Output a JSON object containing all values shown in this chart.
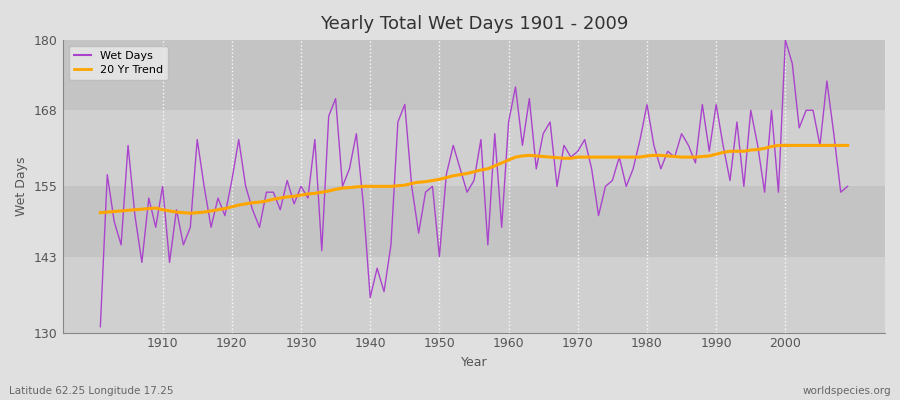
{
  "title": "Yearly Total Wet Days 1901 - 2009",
  "xlabel": "Year",
  "ylabel": "Wet Days",
  "subtitle_left": "Latitude 62.25 Longitude 17.25",
  "subtitle_right": "worldspecies.org",
  "ylim": [
    130,
    180
  ],
  "yticks": [
    130,
    143,
    155,
    168,
    180
  ],
  "xticks": [
    1910,
    1920,
    1930,
    1940,
    1950,
    1960,
    1970,
    1980,
    1990,
    2000
  ],
  "line_color": "#AA44CC",
  "trend_color": "#FFA500",
  "bg_color": "#E0E0E0",
  "plot_bg_color": "#D8D8D8",
  "band_color_light": "#DCDCDC",
  "band_color_dark": "#C8C8C8",
  "grid_color": "#FFFFFF",
  "years": [
    1901,
    1902,
    1903,
    1904,
    1905,
    1906,
    1907,
    1908,
    1909,
    1910,
    1911,
    1912,
    1913,
    1914,
    1915,
    1916,
    1917,
    1918,
    1919,
    1920,
    1921,
    1922,
    1923,
    1924,
    1925,
    1926,
    1927,
    1928,
    1929,
    1930,
    1931,
    1932,
    1933,
    1934,
    1935,
    1936,
    1937,
    1938,
    1939,
    1940,
    1941,
    1942,
    1943,
    1944,
    1945,
    1946,
    1947,
    1948,
    1949,
    1950,
    1951,
    1952,
    1953,
    1954,
    1955,
    1956,
    1957,
    1958,
    1959,
    1960,
    1961,
    1962,
    1963,
    1964,
    1965,
    1966,
    1967,
    1968,
    1969,
    1970,
    1971,
    1972,
    1973,
    1974,
    1975,
    1976,
    1977,
    1978,
    1979,
    1980,
    1981,
    1982,
    1983,
    1984,
    1985,
    1986,
    1987,
    1988,
    1989,
    1990,
    1991,
    1992,
    1993,
    1994,
    1995,
    1996,
    1997,
    1998,
    1999,
    2000,
    2001,
    2002,
    2003,
    2004,
    2005,
    2006,
    2007,
    2008,
    2009
  ],
  "wet_days": [
    131,
    157,
    149,
    145,
    162,
    150,
    142,
    153,
    148,
    155,
    142,
    151,
    145,
    148,
    163,
    155,
    148,
    153,
    150,
    156,
    163,
    155,
    151,
    148,
    154,
    154,
    151,
    156,
    152,
    155,
    153,
    163,
    144,
    167,
    170,
    155,
    158,
    164,
    152,
    136,
    141,
    137,
    145,
    166,
    169,
    155,
    147,
    154,
    155,
    143,
    157,
    162,
    158,
    154,
    156,
    163,
    145,
    164,
    148,
    166,
    172,
    162,
    170,
    158,
    164,
    166,
    155,
    162,
    160,
    161,
    163,
    158,
    150,
    155,
    156,
    160,
    155,
    158,
    163,
    169,
    162,
    158,
    161,
    160,
    164,
    162,
    159,
    169,
    161,
    169,
    162,
    156,
    166,
    155,
    168,
    162,
    154,
    168,
    154,
    180,
    176,
    165,
    168,
    168,
    162,
    173,
    164,
    154,
    155
  ],
  "trend": [
    150.5,
    150.6,
    150.7,
    150.8,
    150.9,
    151.0,
    151.1,
    151.2,
    151.3,
    151.0,
    150.8,
    150.6,
    150.5,
    150.4,
    150.5,
    150.6,
    150.8,
    151.0,
    151.2,
    151.5,
    151.8,
    152.0,
    152.2,
    152.3,
    152.5,
    152.8,
    153.0,
    153.2,
    153.3,
    153.5,
    153.7,
    153.8,
    154.0,
    154.2,
    154.5,
    154.7,
    154.8,
    154.9,
    155.0,
    155.0,
    155.0,
    155.0,
    155.0,
    155.1,
    155.2,
    155.5,
    155.7,
    155.8,
    156.0,
    156.2,
    156.5,
    156.8,
    157.0,
    157.2,
    157.5,
    157.8,
    158.0,
    158.5,
    159.0,
    159.5,
    160.0,
    160.2,
    160.3,
    160.2,
    160.1,
    160.0,
    159.9,
    159.8,
    159.8,
    160.0,
    160.0,
    160.0,
    160.0,
    160.0,
    160.0,
    160.0,
    160.0,
    160.0,
    160.0,
    160.2,
    160.3,
    160.3,
    160.2,
    160.1,
    160.0,
    160.0,
    160.0,
    160.1,
    160.2,
    160.5,
    160.8,
    161.0,
    161.0,
    161.0,
    161.2,
    161.3,
    161.5,
    161.8,
    162.0,
    162.0,
    162.0,
    162.0,
    162.0,
    162.0,
    162.0,
    162.0,
    162.0,
    162.0,
    162.0
  ]
}
